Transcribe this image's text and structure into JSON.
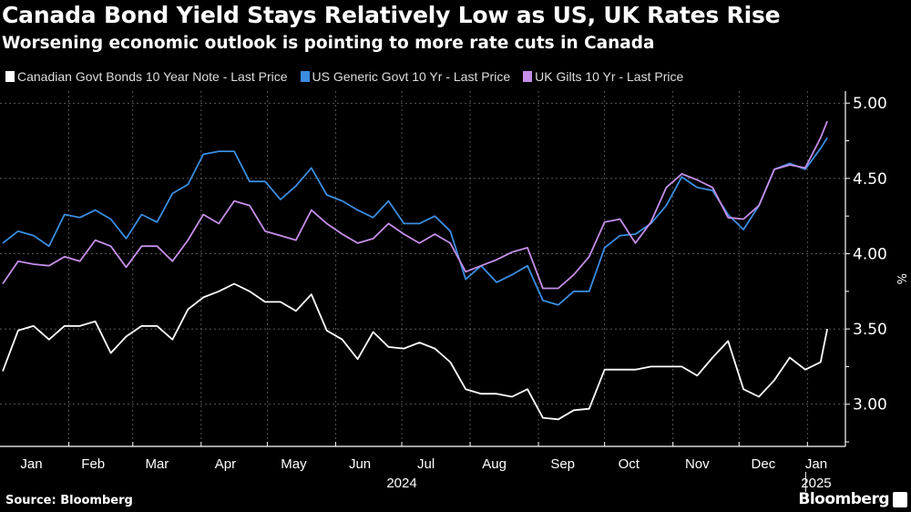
{
  "header": {
    "title": "Canada Bond Yield Stays Relatively Low as US, UK Rates Rise",
    "subtitle": "Worsening economic outlook is pointing to more rate cuts in Canada"
  },
  "footer": {
    "source": "Source: Bloomberg",
    "logo": "Bloomberg"
  },
  "chart_data": {
    "type": "line",
    "title": "Canada Bond Yield Stays Relatively Low as US, UK Rates Rise",
    "subtitle": "Worsening economic outlook is pointing to more rate cuts in Canada",
    "ylabel": "%",
    "yaxis_side": "right",
    "ylim": [
      2.72,
      5.08
    ],
    "yticks": [
      3.0,
      3.5,
      4.0,
      4.5,
      5.0
    ],
    "ytick_labels": [
      "3.00",
      "3.50",
      "4.00",
      "4.50",
      "5.00"
    ],
    "grid": true,
    "legend_placement": "top-left",
    "x_tick_labels": [
      {
        "label": "Jan",
        "date": "2024-01-15"
      },
      {
        "label": "Feb",
        "date": "2024-02-12"
      },
      {
        "label": "Mar",
        "date": "2024-03-12"
      },
      {
        "label": "Apr",
        "date": "2024-04-12"
      },
      {
        "label": "May",
        "date": "2024-05-13"
      },
      {
        "label": "Jun",
        "date": "2024-06-12"
      },
      {
        "label": "Jul",
        "date": "2024-07-12"
      },
      {
        "label": "Aug",
        "date": "2024-08-12"
      },
      {
        "label": "Sep",
        "date": "2024-09-12"
      },
      {
        "label": "Oct",
        "date": "2024-10-12"
      },
      {
        "label": "Nov",
        "date": "2024-11-12"
      },
      {
        "label": "Dec",
        "date": "2024-12-12"
      },
      {
        "label": "Jan",
        "date": "2025-01-05"
      }
    ],
    "year_labels": [
      {
        "label": "2024",
        "date": "2024-07-01"
      },
      {
        "label": "2025",
        "date": "2025-01-05"
      }
    ],
    "x": [
      "2024-01-02",
      "2024-01-09",
      "2024-01-16",
      "2024-01-23",
      "2024-01-30",
      "2024-02-06",
      "2024-02-13",
      "2024-02-20",
      "2024-02-27",
      "2024-03-05",
      "2024-03-12",
      "2024-03-19",
      "2024-03-26",
      "2024-04-02",
      "2024-04-09",
      "2024-04-16",
      "2024-04-23",
      "2024-04-30",
      "2024-05-07",
      "2024-05-14",
      "2024-05-21",
      "2024-05-28",
      "2024-06-04",
      "2024-06-11",
      "2024-06-18",
      "2024-06-25",
      "2024-07-02",
      "2024-07-09",
      "2024-07-16",
      "2024-07-23",
      "2024-07-30",
      "2024-08-06",
      "2024-08-13",
      "2024-08-20",
      "2024-08-27",
      "2024-09-03",
      "2024-09-10",
      "2024-09-17",
      "2024-09-24",
      "2024-10-01",
      "2024-10-08",
      "2024-10-15",
      "2024-10-22",
      "2024-10-29",
      "2024-11-05",
      "2024-11-12",
      "2024-11-19",
      "2024-11-26",
      "2024-12-03",
      "2024-12-10",
      "2024-12-17",
      "2024-12-24",
      "2024-12-31",
      "2025-01-07",
      "2025-01-10"
    ],
    "series": [
      {
        "name": "Canadian Govt Bonds 10 Year Note - Last Price",
        "color": "#ffffff",
        "values": [
          3.22,
          3.49,
          3.52,
          3.43,
          3.52,
          3.52,
          3.55,
          3.34,
          3.45,
          3.52,
          3.52,
          3.43,
          3.63,
          3.71,
          3.75,
          3.8,
          3.75,
          3.68,
          3.68,
          3.62,
          3.73,
          3.49,
          3.43,
          3.3,
          3.48,
          3.38,
          3.37,
          3.41,
          3.37,
          3.28,
          3.1,
          3.07,
          3.07,
          3.05,
          3.1,
          2.91,
          2.9,
          2.96,
          2.97,
          3.23,
          3.23,
          3.23,
          3.25,
          3.25,
          3.25,
          3.19,
          3.31,
          3.42,
          3.1,
          3.05,
          3.16,
          3.31,
          3.23,
          3.28,
          3.5
        ]
      },
      {
        "name": "US Generic Govt 10 Yr - Last Price",
        "color": "#3b8de0",
        "values": [
          4.07,
          4.15,
          4.12,
          4.05,
          4.26,
          4.24,
          4.29,
          4.23,
          4.1,
          4.26,
          4.21,
          4.4,
          4.46,
          4.66,
          4.68,
          4.68,
          4.48,
          4.48,
          4.36,
          4.45,
          4.57,
          4.39,
          4.35,
          4.29,
          4.24,
          4.35,
          4.2,
          4.2,
          4.25,
          4.15,
          3.83,
          3.92,
          3.81,
          3.86,
          3.92,
          3.69,
          3.66,
          3.75,
          3.75,
          4.04,
          4.12,
          4.13,
          4.2,
          4.32,
          4.51,
          4.44,
          4.42,
          4.26,
          4.16,
          4.32,
          4.56,
          4.6,
          4.56,
          4.7,
          4.77
        ]
      },
      {
        "name": "UK Gilts 10 Yr - Last Price",
        "color": "#c58ee8",
        "values": [
          3.8,
          3.95,
          3.93,
          3.92,
          3.98,
          3.95,
          4.09,
          4.05,
          3.91,
          4.05,
          4.05,
          3.95,
          4.09,
          4.26,
          4.2,
          4.35,
          4.32,
          4.15,
          4.12,
          4.09,
          4.29,
          4.2,
          4.13,
          4.07,
          4.1,
          4.2,
          4.13,
          4.07,
          4.13,
          4.07,
          3.88,
          3.92,
          3.96,
          4.01,
          4.04,
          3.77,
          3.77,
          3.86,
          3.98,
          4.21,
          4.23,
          4.07,
          4.21,
          4.44,
          4.53,
          4.49,
          4.44,
          4.24,
          4.23,
          4.32,
          4.56,
          4.59,
          4.57,
          4.77,
          4.88
        ]
      }
    ]
  }
}
